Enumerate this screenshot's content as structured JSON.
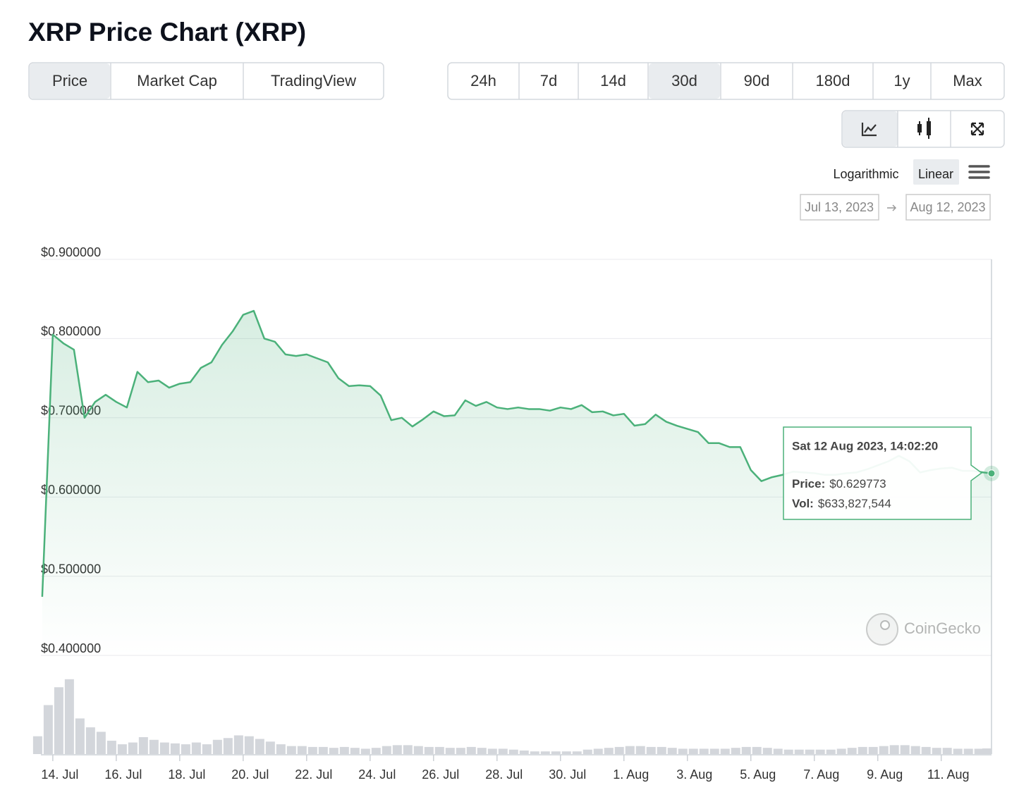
{
  "ui": {
    "title": "XRP Price Chart (XRP)",
    "tabs": [
      "Price",
      "Market Cap",
      "TradingView"
    ],
    "active_tab": 0,
    "ranges": [
      "24h",
      "7d",
      "14d",
      "30d",
      "90d",
      "180d",
      "1y",
      "Max"
    ],
    "active_range": 3,
    "scale_options": [
      "Logarithmic",
      "Linear"
    ],
    "date_from": "Jul 13, 2023",
    "date_to": "Aug 12, 2023",
    "watermark": "CoinGecko"
  },
  "chart_data": {
    "type": "line",
    "x": [
      "2023-07-13T16:00",
      "2023-07-14T00:00",
      "2023-07-14T08:00",
      "2023-07-14T16:00",
      "2023-07-15T00:00",
      "2023-07-15T08:00",
      "2023-07-15T16:00",
      "2023-07-16T00:00",
      "2023-07-16T08:00",
      "2023-07-16T16:00",
      "2023-07-17T00:00",
      "2023-07-17T08:00",
      "2023-07-17T16:00",
      "2023-07-18T00:00",
      "2023-07-18T08:00",
      "2023-07-18T16:00",
      "2023-07-19T00:00",
      "2023-07-19T08:00",
      "2023-07-19T16:00",
      "2023-07-20T00:00",
      "2023-07-20T08:00",
      "2023-07-20T16:00",
      "2023-07-21T00:00",
      "2023-07-21T08:00",
      "2023-07-21T16:00",
      "2023-07-22T00:00",
      "2023-07-22T08:00",
      "2023-07-22T16:00",
      "2023-07-23T00:00",
      "2023-07-23T08:00",
      "2023-07-23T16:00",
      "2023-07-24T00:00",
      "2023-07-24T08:00",
      "2023-07-24T16:00",
      "2023-07-25T00:00",
      "2023-07-25T08:00",
      "2023-07-25T16:00",
      "2023-07-26T00:00",
      "2023-07-26T08:00",
      "2023-07-26T16:00",
      "2023-07-27T00:00",
      "2023-07-27T08:00",
      "2023-07-27T16:00",
      "2023-07-28T00:00",
      "2023-07-28T08:00",
      "2023-07-28T16:00",
      "2023-07-29T00:00",
      "2023-07-29T08:00",
      "2023-07-29T16:00",
      "2023-07-30T00:00",
      "2023-07-30T08:00",
      "2023-07-30T16:00",
      "2023-07-31T00:00",
      "2023-07-31T08:00",
      "2023-07-31T16:00",
      "2023-08-01T00:00",
      "2023-08-01T08:00",
      "2023-08-01T16:00",
      "2023-08-02T00:00",
      "2023-08-02T08:00",
      "2023-08-02T16:00",
      "2023-08-03T00:00",
      "2023-08-03T08:00",
      "2023-08-03T16:00",
      "2023-08-04T00:00",
      "2023-08-04T08:00",
      "2023-08-04T16:00",
      "2023-08-05T00:00",
      "2023-08-05T08:00",
      "2023-08-05T16:00",
      "2023-08-06T00:00",
      "2023-08-06T08:00",
      "2023-08-06T16:00",
      "2023-08-07T00:00",
      "2023-08-07T08:00",
      "2023-08-07T16:00",
      "2023-08-08T00:00",
      "2023-08-08T08:00",
      "2023-08-08T16:00",
      "2023-08-09T00:00",
      "2023-08-09T08:00",
      "2023-08-09T16:00",
      "2023-08-10T00:00",
      "2023-08-10T08:00",
      "2023-08-10T16:00",
      "2023-08-11T00:00",
      "2023-08-11T08:00",
      "2023-08-11T16:00",
      "2023-08-12T00:00",
      "2023-08-12T08:00",
      "2023-08-12T14:02:20"
    ],
    "series": [
      {
        "color": "#4bb17a",
        "values": [
          0.474,
          0.805,
          0.794,
          0.786,
          0.7,
          0.72,
          0.729,
          0.72,
          0.713,
          0.758,
          0.745,
          0.747,
          0.738,
          0.743,
          0.745,
          0.763,
          0.77,
          0.792,
          0.809,
          0.83,
          0.835,
          0.8,
          0.796,
          0.78,
          0.778,
          0.78,
          0.775,
          0.77,
          0.75,
          0.74,
          0.741,
          0.74,
          0.728,
          0.697,
          0.7,
          0.689,
          0.698,
          0.708,
          0.702,
          0.703,
          0.722,
          0.715,
          0.72,
          0.713,
          0.711,
          0.713,
          0.711,
          0.711,
          0.709,
          0.713,
          0.711,
          0.716,
          0.707,
          0.708,
          0.703,
          0.705,
          0.69,
          0.692,
          0.704,
          0.695,
          0.69,
          0.686,
          0.682,
          0.668,
          0.668,
          0.663,
          0.663,
          0.634,
          0.62,
          0.625,
          0.628,
          0.632,
          0.631,
          0.63,
          0.628,
          0.628,
          0.63,
          0.631,
          0.635,
          0.64,
          0.645,
          0.652,
          0.645,
          0.631,
          0.634,
          0.636,
          0.637,
          0.633,
          0.633,
          0.631,
          0.629773
        ]
      },
      {
        "color": "#d3d6db",
        "axis": "y2",
        "values": [
          2000000000,
          5500000000,
          7500000000,
          8400000000,
          4000000000,
          3000000000,
          2500000000,
          1500000000,
          1100000000,
          1300000000,
          1900000000,
          1600000000,
          1300000000,
          1200000000,
          1100000000,
          1300000000,
          1100000000,
          1600000000,
          1800000000,
          2100000000,
          2000000000,
          1700000000,
          1400000000,
          1100000000,
          900000000,
          900000000,
          800000000,
          800000000,
          700000000,
          800000000,
          700000000,
          600000000,
          700000000,
          900000000,
          1000000000,
          1000000000,
          900000000,
          800000000,
          800000000,
          700000000,
          700000000,
          800000000,
          700000000,
          600000000,
          600000000,
          500000000,
          400000000,
          300000000,
          300000000,
          300000000,
          300000000,
          300000000,
          500000000,
          600000000,
          700000000,
          800000000,
          900000000,
          900000000,
          800000000,
          800000000,
          700000000,
          600000000,
          600000000,
          600000000,
          600000000,
          600000000,
          700000000,
          800000000,
          800000000,
          700000000,
          600000000,
          500000000,
          500000000,
          500000000,
          500000000,
          500000000,
          600000000,
          700000000,
          800000000,
          800000000,
          900000000,
          1000000000,
          1000000000,
          900000000,
          800000000,
          700000000,
          700000000,
          600000000,
          600000000,
          600000000,
          633827544
        ]
      }
    ],
    "xlim": [
      "2023-07-13T15:00",
      "2023-08-12T14:02:20"
    ],
    "xticks": [
      {
        "value": "2023-07-14T00:00",
        "label": "14. Jul"
      },
      {
        "value": "2023-07-16T00:00",
        "label": "16. Jul"
      },
      {
        "value": "2023-07-18T00:00",
        "label": "18. Jul"
      },
      {
        "value": "2023-07-20T00:00",
        "label": "20. Jul"
      },
      {
        "value": "2023-07-22T00:00",
        "label": "22. Jul"
      },
      {
        "value": "2023-07-24T00:00",
        "label": "24. Jul"
      },
      {
        "value": "2023-07-26T00:00",
        "label": "26. Jul"
      },
      {
        "value": "2023-07-28T00:00",
        "label": "28. Jul"
      },
      {
        "value": "2023-07-30T00:00",
        "label": "30. Jul"
      },
      {
        "value": "2023-08-01T00:00",
        "label": "1. Aug"
      },
      {
        "value": "2023-08-03T00:00",
        "label": "3. Aug"
      },
      {
        "value": "2023-08-05T00:00",
        "label": "5. Aug"
      },
      {
        "value": "2023-08-07T00:00",
        "label": "7. Aug"
      },
      {
        "value": "2023-08-09T00:00",
        "label": "9. Aug"
      },
      {
        "value": "2023-08-11T00:00",
        "label": "11. Aug"
      }
    ],
    "ylim": [
      0.4,
      0.9
    ],
    "yticks": [
      {
        "value": 0.9,
        "label": "$0.900000"
      },
      {
        "value": 0.8,
        "label": "$0.800000"
      },
      {
        "value": 0.7,
        "label": "$0.700000"
      },
      {
        "value": 0.6,
        "label": "$0.600000"
      },
      {
        "value": 0.5,
        "label": "$0.500000"
      },
      {
        "value": 0.4,
        "label": "$0.400000"
      }
    ],
    "y2lim": [
      0,
      8700000000
    ],
    "log_scale": false,
    "grid": true,
    "tooltip": {
      "date": "Sat 12 Aug 2023, 14:02:20",
      "rows": [
        {
          "label": "Price:",
          "value": "$0.629773"
        },
        {
          "label": "Vol:",
          "value": "$633,827,544"
        }
      ]
    }
  }
}
